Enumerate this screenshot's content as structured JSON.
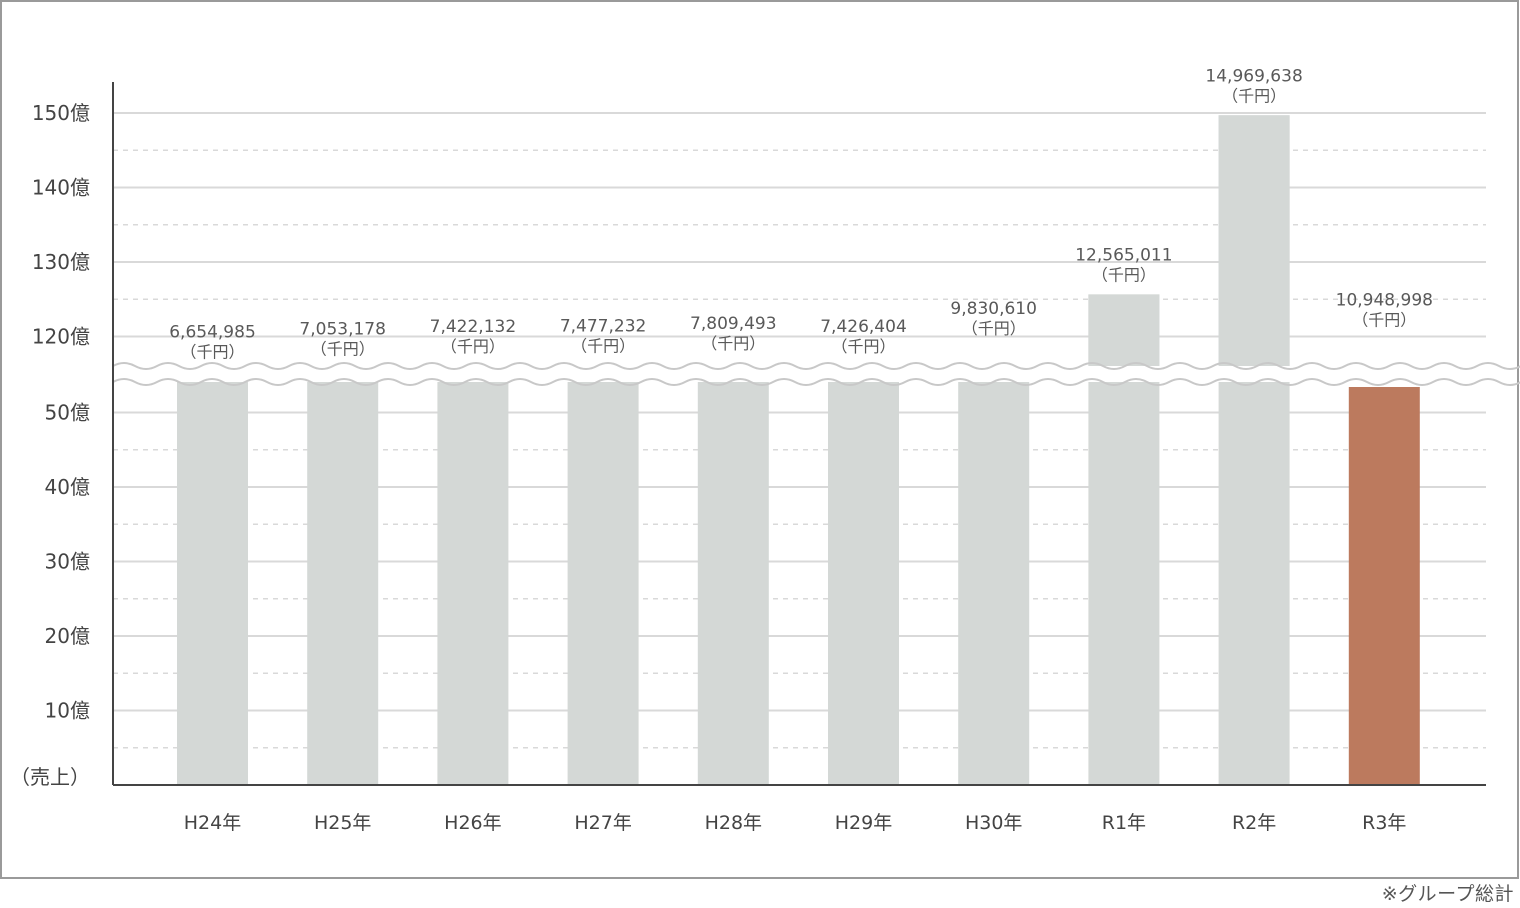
{
  "chart_data": {
    "type": "bar",
    "categories": [
      "H24年",
      "H25年",
      "H26年",
      "H27年",
      "H28年",
      "H29年",
      "H30年",
      "R1年",
      "R2年",
      "R3年"
    ],
    "values": [
      6654985,
      7053178,
      7422132,
      7477232,
      7809493,
      7426404,
      9830610,
      12565011,
      14969638,
      10948998
    ],
    "value_labels": [
      "6,654,985",
      "7,053,178",
      "7,422,132",
      "7,477,232",
      "7,809,493",
      "7,426,404",
      "9,830,610",
      "12,565,011",
      "14,969,638",
      "10,948,998"
    ],
    "unit_label": "（千円）",
    "ylabel": "（売上）",
    "y_ticks_lower": [
      "10億",
      "20億",
      "30億",
      "40億",
      "50億"
    ],
    "y_ticks_upper": [
      "120億",
      "130億",
      "140億",
      "150億"
    ],
    "y_tick_values_lower": [
      10,
      20,
      30,
      40,
      50
    ],
    "y_tick_values_upper": [
      120,
      130,
      140,
      150
    ],
    "axis_break": [
      55,
      115
    ],
    "ylim": [
      0,
      150
    ],
    "grid": true,
    "colors": {
      "bar": "#d4d8d6",
      "highlight": "#bc7a5e",
      "grid": "#d9d9d9",
      "axis": "#444444",
      "label": "#595959"
    },
    "highlight_index": 9
  },
  "footnote": "※グループ総計"
}
